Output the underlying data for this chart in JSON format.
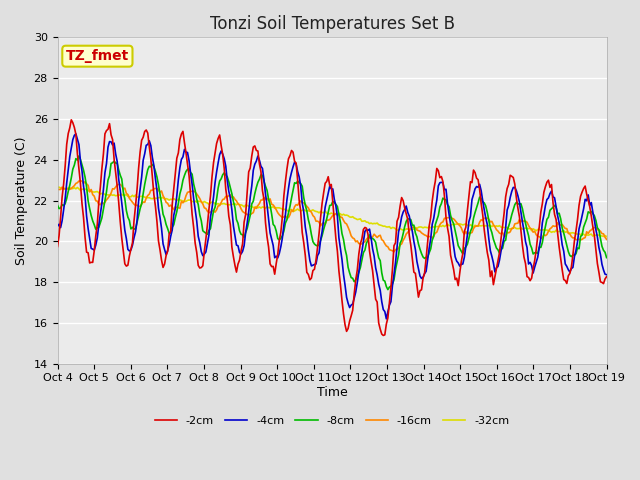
{
  "title": "Tonzi Soil Temperatures Set B",
  "xlabel": "Time",
  "ylabel": "Soil Temperature (C)",
  "ylim": [
    14,
    30
  ],
  "yticks": [
    14,
    16,
    18,
    20,
    22,
    24,
    26,
    28,
    30
  ],
  "xtick_labels": [
    "Oct 4",
    "Oct 5",
    "Oct 6",
    "Oct 7",
    "Oct 8",
    "Oct 9",
    "Oct 10",
    "Oct 11",
    "Oct 12",
    "Oct 13",
    "Oct 14",
    "Oct 15",
    "Oct 16",
    "Oct 17",
    "Oct 18",
    "Oct 19"
  ],
  "series_colors": {
    "-2cm": "#dd0000",
    "-4cm": "#0000cc",
    "-8cm": "#00bb00",
    "-16cm": "#ff8800",
    "-32cm": "#dddd00"
  },
  "series_linewidth": 1.2,
  "annotation_text": "TZ_fmet",
  "annotation_color": "#cc0000",
  "annotation_bg": "#ffffcc",
  "annotation_edge": "#cccc00",
  "bg_color": "#e0e0e0",
  "plot_bg_color": "#ebebeb",
  "grid_color": "#ffffff",
  "title_fontsize": 12,
  "label_fontsize": 9,
  "tick_fontsize": 8
}
